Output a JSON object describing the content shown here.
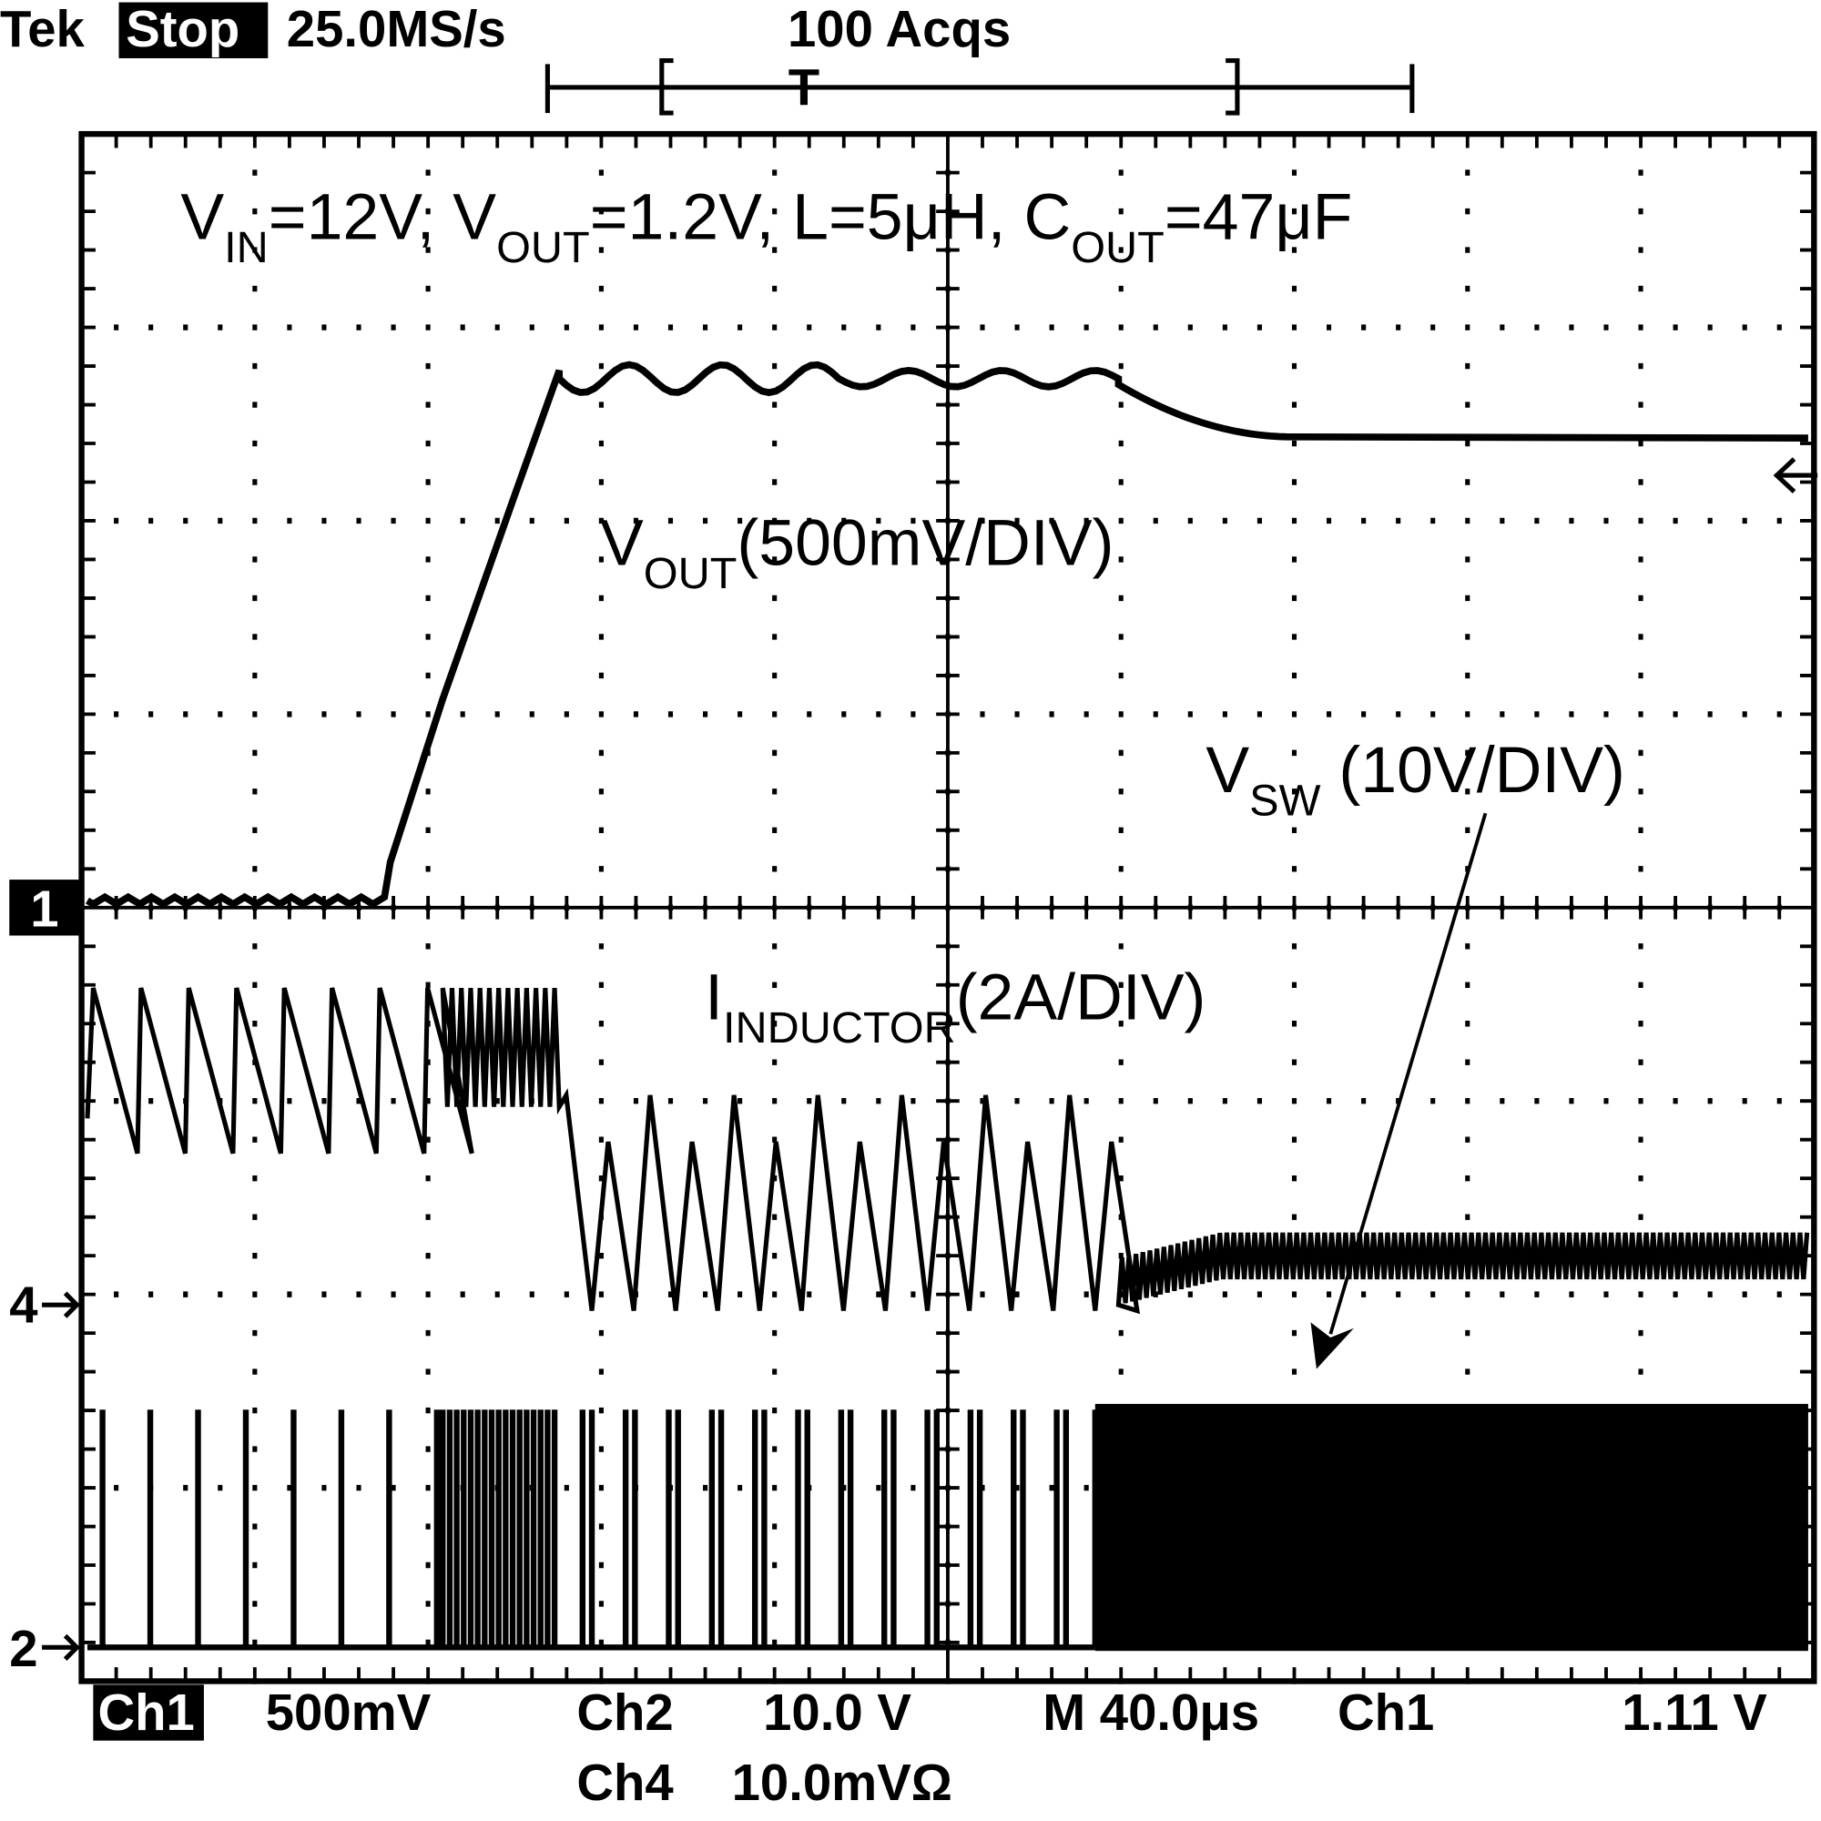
{
  "header": {
    "brand": "Tek",
    "state": "Stop",
    "sample_rate": "25.0MS/s",
    "acquisitions": "100 Acqs",
    "trigger_marker": "T"
  },
  "conditions": [
    "V",
    "IN",
    "=12V, V",
    "OUT",
    "=1.2V, L=5μH, C",
    "OUT",
    "=47μF"
  ],
  "labels": {
    "vout": [
      "V",
      "OUT",
      "(500mV/DIV)"
    ],
    "vsw": [
      "V",
      "SW",
      " (10V/DIV)"
    ],
    "inductor": [
      "I",
      "INDUCTOR",
      "(2A/DIV)"
    ]
  },
  "channel_markers": {
    "ch1": "1",
    "ch4": "4",
    "ch2": "2"
  },
  "footer": {
    "ch1": "Ch1",
    "ch1_scale": "500mV",
    "ch2": "Ch2",
    "ch2_scale": "10.0 V",
    "time_scale": "M 40.0μs",
    "trigger_source": "Ch1",
    "trigger_level": "1.11 V",
    "ch4": "Ch4",
    "ch4_scale": "10.0mVΩ"
  }
}
